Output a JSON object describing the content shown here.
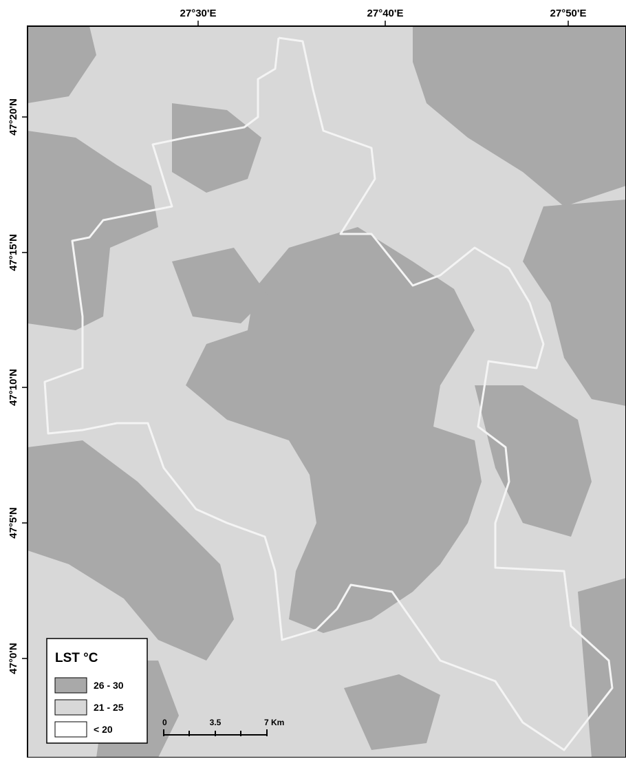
{
  "map": {
    "longitude_labels": [
      "27°30'E",
      "27°40'E",
      "27°50'E"
    ],
    "latitude_labels": [
      "47°20'N",
      "47°15'N",
      "47°10'N",
      "47°5'N",
      "47°0'N"
    ],
    "legend": {
      "title": "LST °C",
      "classes": [
        "26 - 30",
        "21 - 25",
        "< 20"
      ]
    },
    "scale_bar": {
      "labels": [
        "0",
        "3.5",
        "7 Km"
      ]
    }
  }
}
